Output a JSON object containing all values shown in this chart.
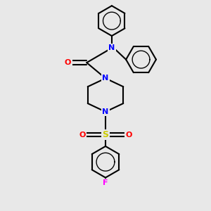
{
  "background_color": "#e8e8e8",
  "bond_color": "#000000",
  "n_color": "#0000ff",
  "o_color": "#ff0000",
  "s_color": "#cccc00",
  "f_color": "#ff00ff",
  "line_width": 1.5,
  "fig_width": 3.0,
  "fig_height": 3.0,
  "dpi": 100,
  "xlim": [
    0,
    10
  ],
  "ylim": [
    0,
    10
  ]
}
